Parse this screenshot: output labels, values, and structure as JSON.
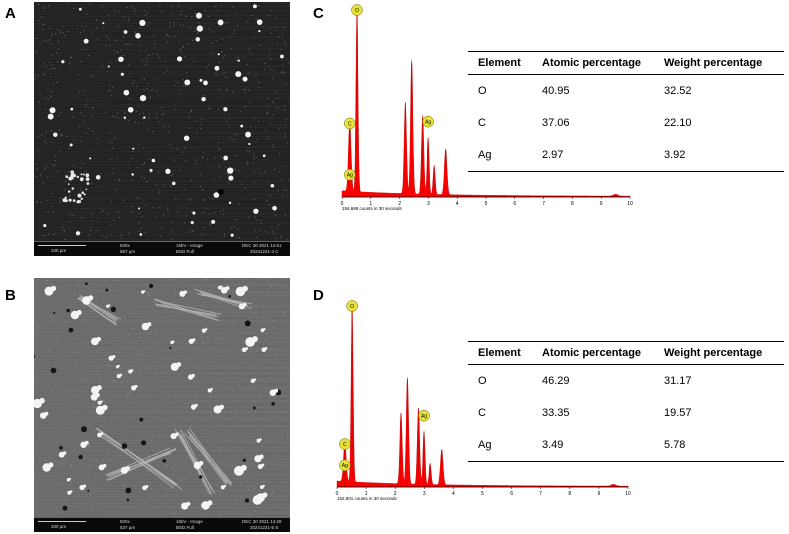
{
  "panels": {
    "a": {
      "letter": "A",
      "sem_bar": {
        "scale": "100 µm",
        "mag": "500x",
        "hfw": "557 µm",
        "kv": "15kV - Image",
        "detector": "BSD Full",
        "date": "DEC 30 2021 14:51",
        "id": "20241221-4 C"
      }
    },
    "b": {
      "letter": "B",
      "sem_bar": {
        "scale": "100 µm",
        "mag": "500x",
        "hfw": "537 µm",
        "kv": "15kV - Image",
        "detector": "BSD Full",
        "date": "DEC 30 2021 14:28",
        "id": "20241221-5 S"
      }
    },
    "c": {
      "letter": "C",
      "counts": "156,688 counts in 30 seconds",
      "x_ticks": [
        "0",
        "1",
        "2",
        "3",
        "4",
        "5",
        "6",
        "7",
        "8",
        "9",
        "10"
      ],
      "peak_labels": [
        "O",
        "C",
        "Ag",
        "Ag"
      ],
      "table": {
        "headers": [
          "Element",
          "Atomic percentage",
          "Weight percentage"
        ],
        "rows": [
          [
            "O",
            "40.95",
            "32.52"
          ],
          [
            "C",
            "37.06",
            "22.10"
          ],
          [
            "Ag",
            "2.97",
            "3.92"
          ]
        ]
      }
    },
    "d": {
      "letter": "D",
      "counts": "152,901 counts in 30 seconds",
      "x_ticks": [
        "0",
        "1",
        "2",
        "3",
        "4",
        "5",
        "6",
        "7",
        "8",
        "9",
        "10"
      ],
      "peak_labels": [
        "O",
        "C",
        "Ag",
        "Ag"
      ],
      "table": {
        "headers": [
          "Element",
          "Atomic percentage",
          "Weight percentage"
        ],
        "rows": [
          [
            "O",
            "46.29",
            "31.17"
          ],
          [
            "C",
            "33.35",
            "19.57"
          ],
          [
            "Ag",
            "3.49",
            "5.78"
          ]
        ]
      }
    }
  },
  "chart_data": [
    {
      "type": "area",
      "panel": "C",
      "xlim": [
        0,
        10
      ],
      "xlabel": "",
      "ylabel": "",
      "peaks_keV": [
        0.27,
        0.52,
        2.2,
        2.42,
        2.8,
        2.99,
        3.2,
        3.6,
        9.5
      ],
      "peak_heights": [
        0.38,
        1.0,
        0.5,
        0.73,
        0.43,
        0.31,
        0.16,
        0.25,
        0.01
      ],
      "series": [
        {
          "values": [
            0.38,
            1.0,
            0.5,
            0.73,
            0.43,
            0.31,
            0.16,
            0.25,
            0.01
          ]
        }
      ],
      "color": "#ff0000"
    },
    {
      "type": "area",
      "panel": "D",
      "xlim": [
        0,
        10
      ],
      "xlabel": "",
      "ylabel": "",
      "peaks_keV": [
        0.27,
        0.52,
        2.2,
        2.42,
        2.8,
        2.99,
        3.2,
        3.6,
        9.5
      ],
      "peak_heights": [
        0.22,
        1.0,
        0.4,
        0.6,
        0.43,
        0.3,
        0.12,
        0.2,
        0.01
      ],
      "series": [
        {
          "values": [
            0.22,
            1.0,
            0.4,
            0.6,
            0.43,
            0.3,
            0.12,
            0.2,
            0.01
          ]
        }
      ],
      "color": "#ff0000"
    }
  ]
}
